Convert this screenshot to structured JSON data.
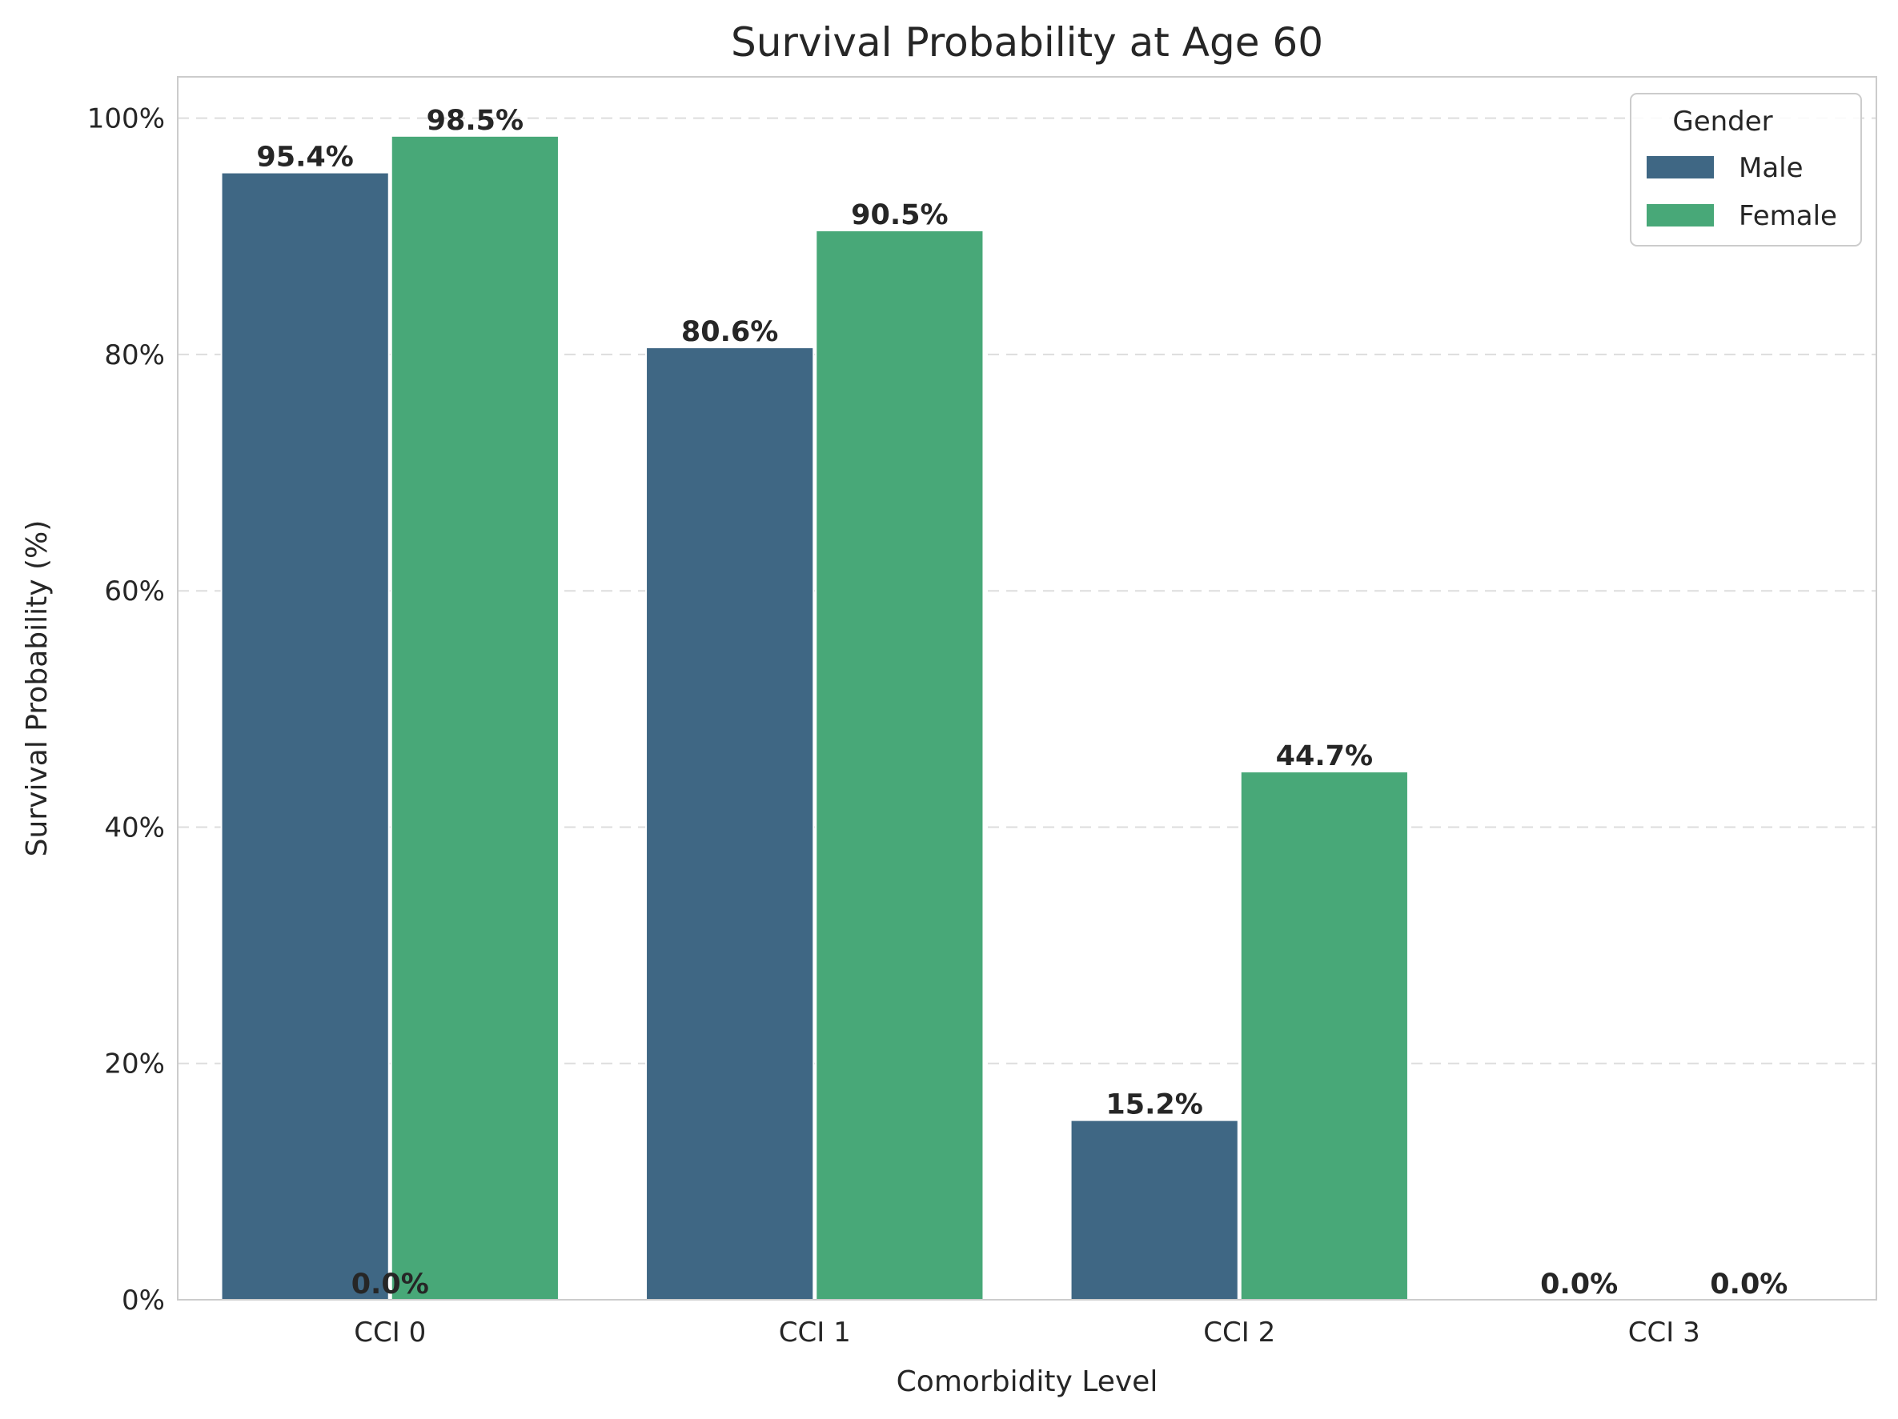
{
  "chart_data": {
    "type": "bar",
    "title": "Survival Probability at Age 60",
    "xlabel": "Comorbidity Level",
    "ylabel": "Survival Probability (%)",
    "categories": [
      "CCI 0",
      "CCI 1",
      "CCI 2",
      "CCI 3"
    ],
    "series": [
      {
        "name": "Male",
        "color": "#3f6784",
        "values": [
          95.4,
          80.6,
          15.2,
          0.0
        ],
        "labels": [
          "95.4%",
          "80.6%",
          "15.2%",
          "0.0%"
        ]
      },
      {
        "name": "Female",
        "color": "#48a878",
        "values": [
          98.5,
          90.5,
          44.7,
          0.0
        ],
        "labels": [
          "98.5%",
          "90.5%",
          "44.7%",
          "0.0%"
        ]
      }
    ],
    "extra_labels": [
      {
        "category": "CCI 0",
        "text": "0.0%"
      }
    ],
    "ylim": [
      0,
      103.5
    ],
    "yticks": [
      0,
      20,
      40,
      60,
      80,
      100
    ],
    "ytick_labels": [
      "0%",
      "20%",
      "40%",
      "60%",
      "80%",
      "100%"
    ],
    "grid": "horizontal-dashed",
    "legend": {
      "title": "Gender",
      "placement": "top-right"
    }
  }
}
